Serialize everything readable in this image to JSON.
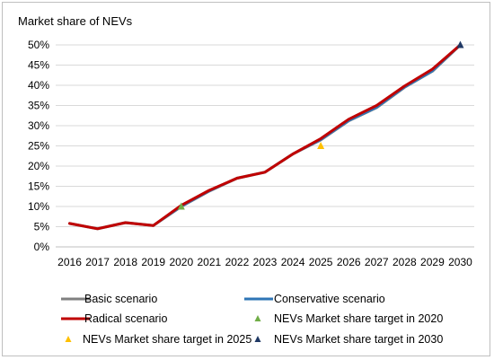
{
  "chart_data": {
    "type": "line",
    "title": "Market share of NEVs",
    "categories": [
      "2016",
      "2017",
      "2018",
      "2019",
      "2020",
      "2021",
      "2022",
      "2023",
      "2024",
      "2025",
      "2026",
      "2027",
      "2028",
      "2029",
      "2030"
    ],
    "y_ticks": [
      "0%",
      "5%",
      "10%",
      "15%",
      "20%",
      "25%",
      "30%",
      "35%",
      "40%",
      "45%",
      "50%"
    ],
    "ylim": [
      0,
      50
    ],
    "grid": true,
    "series": [
      {
        "name": "Basic scenario",
        "color": "#808080",
        "values": [
          5.8,
          4.5,
          6.0,
          5.3,
          10.0,
          13.8,
          17.0,
          18.5,
          23.0,
          26.5,
          31.2,
          34.5,
          39.5,
          43.5,
          50.0
        ]
      },
      {
        "name": "Conservative scenario",
        "color": "#2e75b6",
        "values": [
          5.8,
          4.5,
          6.0,
          5.3,
          10.0,
          13.8,
          17.0,
          18.5,
          23.0,
          26.5,
          31.2,
          34.5,
          39.5,
          43.5,
          50.0
        ]
      },
      {
        "name": "Radical scenario",
        "color": "#c00000",
        "values": [
          5.8,
          4.5,
          6.0,
          5.3,
          10.3,
          14.0,
          17.0,
          18.5,
          23.0,
          26.8,
          31.6,
          35.0,
          39.8,
          44.0,
          50.0
        ]
      }
    ],
    "markers": [
      {
        "name": "NEVs Market share target in 2020",
        "color": "#70ad47",
        "x": "2020",
        "y": 10
      },
      {
        "name": "NEVs Market share target in 2025",
        "color": "#ffc000",
        "x": "2025",
        "y": 25
      },
      {
        "name": "NEVs Market share target in 2030",
        "color": "#1f3864",
        "x": "2030",
        "y": 50
      }
    ],
    "legend_position": "bottom"
  }
}
